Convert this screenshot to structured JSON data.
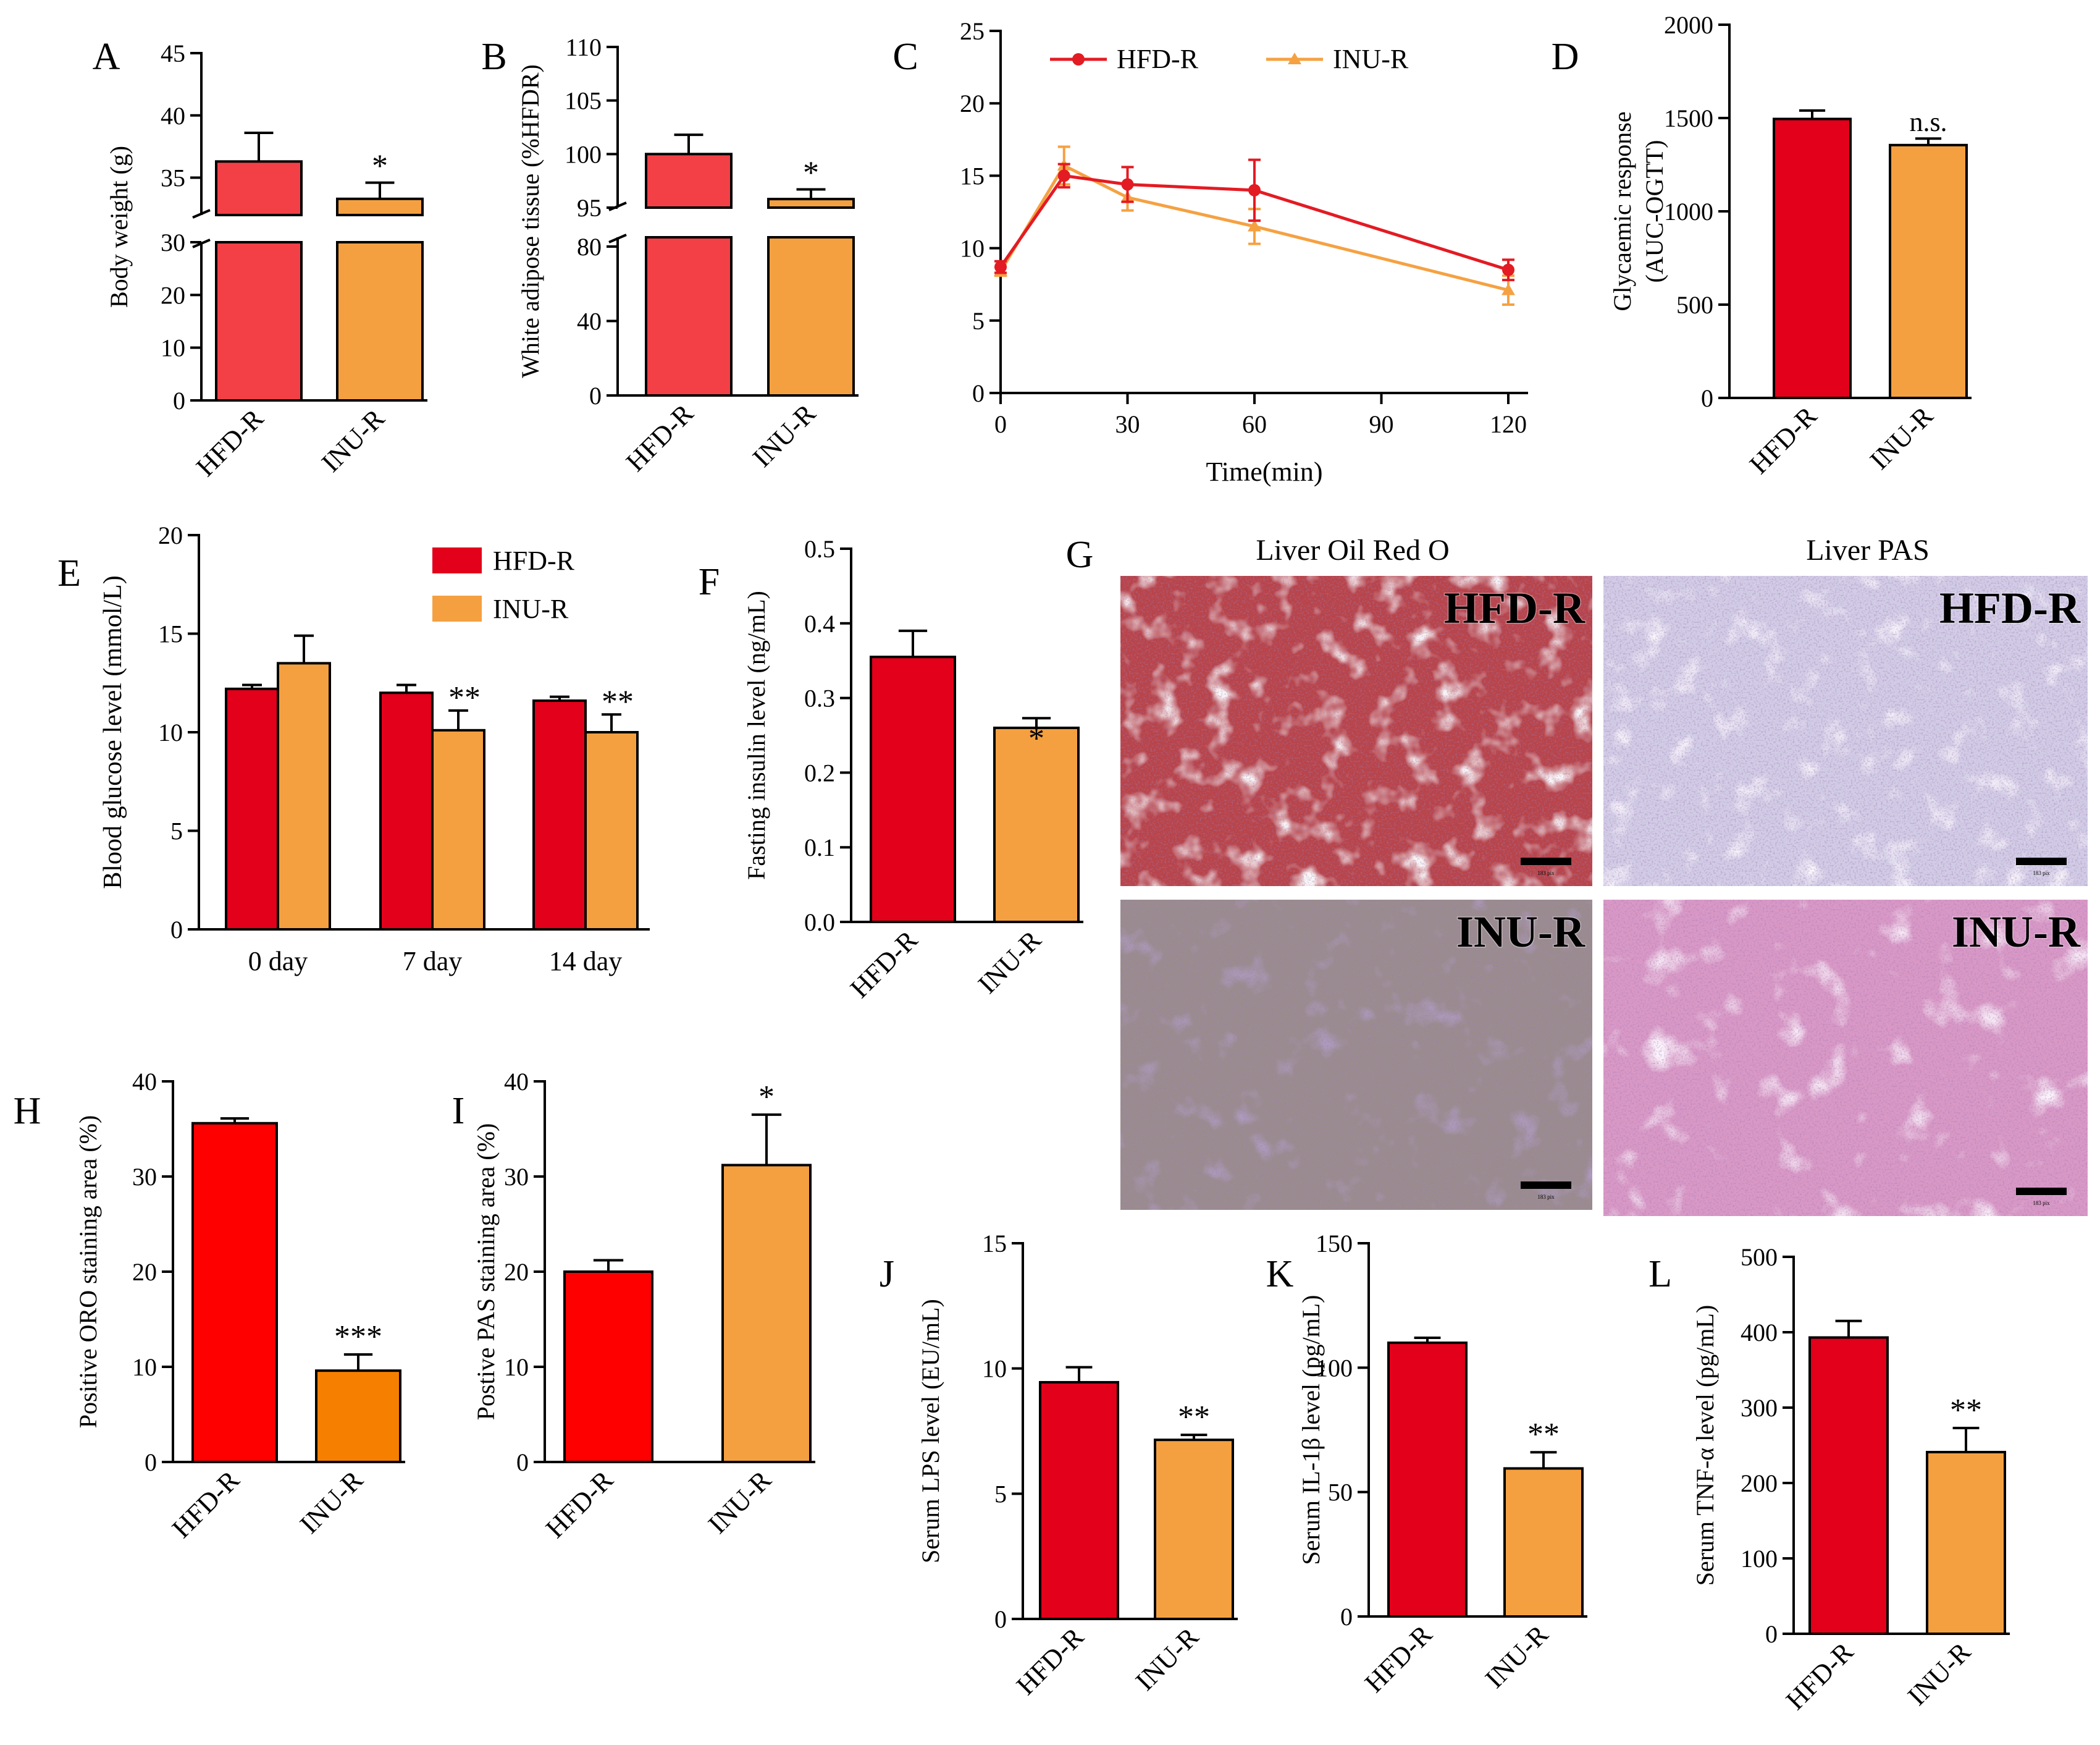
{
  "colors": {
    "hfd": "#e2001a",
    "hfd_light": "#f24046",
    "hfd_pure": "#ff0000",
    "inu": "#f4a040",
    "inu_deep": "#f77f00",
    "line_hfd": "#e31b23",
    "line_inu": "#f5a142"
  },
  "chart_data": [
    {
      "panel": "A",
      "type": "bar",
      "categories": [
        "HFD-R",
        "INU-R"
      ],
      "values": [
        36.3,
        33.3
      ],
      "errors": [
        2.3,
        1.3
      ],
      "ylabel": "Body weight (g)",
      "ylim": [
        0,
        45
      ],
      "axis_break": [
        30,
        32
      ],
      "ticks_lower": [
        "0",
        "10",
        "20",
        "30"
      ],
      "ticks_upper": [
        "35",
        "40",
        "45"
      ],
      "annotations": [
        "",
        "*"
      ]
    },
    {
      "panel": "B",
      "type": "bar",
      "categories": [
        "HFD-R",
        "INU-R"
      ],
      "values": [
        100,
        95.8
      ],
      "errors": [
        1.8,
        0.9
      ],
      "ylabel": "White adipose tissue (%HFDR)",
      "ylim": [
        0,
        110
      ],
      "axis_break": [
        85,
        95
      ],
      "ticks_lower": [
        "0",
        "40",
        "80"
      ],
      "ticks_upper": [
        "95",
        "100",
        "105",
        "110"
      ],
      "annotations": [
        "",
        "*"
      ]
    },
    {
      "panel": "C",
      "type": "line",
      "x": [
        0,
        15,
        30,
        60,
        120
      ],
      "xlabel": "Time(min)",
      "ylabel": "",
      "xlim": [
        0,
        120
      ],
      "ylim": [
        0,
        25
      ],
      "xticks": [
        "0",
        "30",
        "60",
        "90",
        "120"
      ],
      "yticks": [
        "0",
        "5",
        "10",
        "15",
        "20",
        "25"
      ],
      "legend_position": "top",
      "series": [
        {
          "name": "HFD-R",
          "values": [
            8.7,
            15.0,
            14.4,
            14.0,
            8.5
          ],
          "errors": [
            0.4,
            0.8,
            1.2,
            2.1,
            0.7
          ]
        },
        {
          "name": "INU-R",
          "values": [
            8.4,
            15.7,
            13.5,
            11.5,
            7.1
          ],
          "errors": [
            0.3,
            1.3,
            0.9,
            1.2,
            1.0
          ]
        }
      ]
    },
    {
      "panel": "D",
      "type": "bar",
      "categories": [
        "HFD-R",
        "INU-R"
      ],
      "values": [
        1495,
        1355
      ],
      "errors": [
        45,
        35
      ],
      "ylabel": "Glycaemic response (AUC-OGTT)",
      "ylim": [
        0,
        2000
      ],
      "yticks": [
        "0",
        "500",
        "1000",
        "1500",
        "2000"
      ],
      "annotations": [
        "",
        "n.s."
      ]
    },
    {
      "panel": "E",
      "type": "bar",
      "categories": [
        "0 day",
        "7 day",
        "14 day"
      ],
      "ylabel": "Blood glucose level (mmol/L)",
      "ylim": [
        0,
        20
      ],
      "yticks": [
        "0",
        "5",
        "10",
        "15",
        "20"
      ],
      "legend_position": "top-right",
      "series": [
        {
          "name": "HFD-R",
          "values": [
            12.2,
            12.0,
            11.6
          ],
          "errors": [
            0.2,
            0.4,
            0.2
          ]
        },
        {
          "name": "INU-R",
          "values": [
            13.5,
            10.1,
            10.0
          ],
          "errors": [
            1.4,
            1.0,
            0.9
          ]
        }
      ],
      "annotations": [
        "",
        "**",
        "**"
      ]
    },
    {
      "panel": "F",
      "type": "bar",
      "categories": [
        "HFD-R",
        "INU-R"
      ],
      "values": [
        0.355,
        0.26
      ],
      "errors": [
        0.035,
        0.013
      ],
      "ylabel": "Fasting insulin level (ng/mL)",
      "ylim": [
        0,
        0.5
      ],
      "yticks": [
        "0.0",
        "0.1",
        "0.2",
        "0.3",
        "0.4",
        "0.5"
      ],
      "annotations": [
        "",
        "*"
      ]
    },
    {
      "panel": "H",
      "type": "bar",
      "categories": [
        "HFD-R",
        "INU-R"
      ],
      "values": [
        35.6,
        9.6
      ],
      "errors": [
        0.5,
        1.7
      ],
      "ylabel": "Positive ORO staining area (%)",
      "ylim": [
        0,
        40
      ],
      "yticks": [
        "0",
        "10",
        "20",
        "30",
        "40"
      ],
      "annotations": [
        "",
        "***"
      ]
    },
    {
      "panel": "I",
      "type": "bar",
      "categories": [
        "HFD-R",
        "INU-R"
      ],
      "values": [
        20.0,
        31.2
      ],
      "errors": [
        1.2,
        5.3
      ],
      "ylabel": "Postive PAS staining area (%)",
      "ylim": [
        0,
        40
      ],
      "yticks": [
        "0",
        "10",
        "20",
        "30",
        "40"
      ],
      "annotations": [
        "",
        "*"
      ]
    },
    {
      "panel": "J",
      "type": "bar",
      "categories": [
        "HFD-R",
        "INU-R"
      ],
      "values": [
        9.45,
        7.15
      ],
      "errors": [
        0.6,
        0.2
      ],
      "ylabel": "Serum LPS level (EU/mL)",
      "ylim": [
        0,
        15
      ],
      "yticks": [
        "0",
        "5",
        "10",
        "15"
      ],
      "annotations": [
        "",
        "**"
      ]
    },
    {
      "panel": "K",
      "type": "bar",
      "categories": [
        "HFD-R",
        "INU-R"
      ],
      "values": [
        110,
        59.5
      ],
      "errors": [
        2,
        6.5
      ],
      "ylabel": "Serum IL-1β level (pg/mL)",
      "ylim": [
        0,
        150
      ],
      "yticks": [
        "0",
        "50",
        "100",
        "150"
      ],
      "annotations": [
        "",
        "**"
      ]
    },
    {
      "panel": "L",
      "type": "bar",
      "categories": [
        "HFD-R",
        "INU-R"
      ],
      "values": [
        393,
        241
      ],
      "errors": [
        22,
        32
      ],
      "ylabel": "Serum TNF-α level (pg/mL)",
      "ylim": [
        0,
        500
      ],
      "yticks": [
        "0",
        "100",
        "200",
        "300",
        "400",
        "500"
      ],
      "annotations": [
        "",
        "**"
      ]
    }
  ],
  "histology": {
    "panel": "G",
    "column_titles": [
      "Liver Oil Red O",
      "Liver PAS"
    ],
    "row_labels": [
      "HFD-R",
      "INU-R"
    ],
    "scale_bar_text": "183 pix"
  }
}
